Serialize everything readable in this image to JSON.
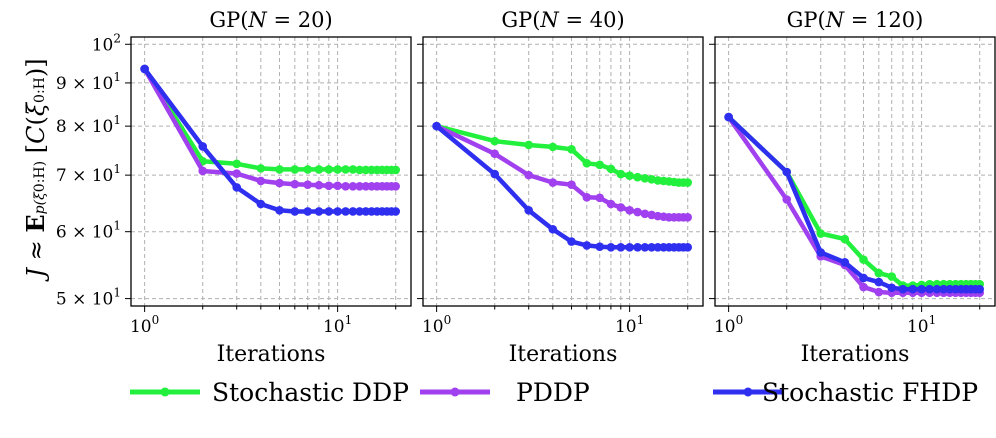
{
  "ylabel": "J ≈ E_{p(ξ0:H)} [C(ξ0:H)]",
  "chart_data": [
    {
      "type": "line",
      "title": "GP(N = 20)",
      "xlabel": "Iterations",
      "x_scale": "log",
      "y_scale": "log",
      "xlim": [
        0.85,
        24
      ],
      "ylim": [
        49,
        102
      ],
      "x_ticks": [
        "10^0",
        "10^1"
      ],
      "y_ticks": [
        "5 × 10^1",
        "6 × 10^1",
        "7 × 10^1",
        "8 × 10^1",
        "9 × 10^1",
        "10^2"
      ],
      "x": [
        1,
        2,
        3,
        4,
        5,
        6,
        7,
        8,
        9,
        10,
        11,
        12,
        13,
        14,
        15,
        16,
        17,
        18,
        19,
        20
      ],
      "series": [
        {
          "name": "Stochastic DDP",
          "color": "#22f03c",
          "values": [
            93.5,
            72.7,
            72.2,
            71.3,
            71.1,
            71.1,
            71.1,
            71.1,
            71.1,
            71.1,
            71.1,
            71.1,
            71.0,
            71.0,
            71.0,
            71.0,
            71.0,
            71.0,
            71.0,
            71.0
          ]
        },
        {
          "name": "PDDP",
          "color": "#a040ee",
          "values": [
            93.5,
            70.8,
            70.3,
            68.9,
            68.5,
            68.3,
            68.2,
            68.1,
            68.0,
            68.0,
            67.9,
            67.9,
            67.9,
            67.9,
            67.9,
            67.9,
            67.9,
            67.9,
            67.9,
            67.9
          ]
        },
        {
          "name": "Stochastic FHDP",
          "color": "#2f2ff0",
          "values": [
            93.5,
            75.7,
            67.7,
            64.7,
            63.6,
            63.4,
            63.4,
            63.4,
            63.4,
            63.4,
            63.4,
            63.4,
            63.4,
            63.4,
            63.4,
            63.4,
            63.4,
            63.4,
            63.4,
            63.4
          ]
        }
      ]
    },
    {
      "type": "line",
      "title": "GP(N = 40)",
      "xlabel": "Iterations",
      "x_scale": "log",
      "y_scale": "log",
      "xlim": [
        0.85,
        24
      ],
      "ylim": [
        49,
        102
      ],
      "x_ticks": [
        "10^0",
        "10^1"
      ],
      "x": [
        1,
        2,
        3,
        4,
        5,
        6,
        7,
        8,
        9,
        10,
        11,
        12,
        13,
        14,
        15,
        16,
        17,
        18,
        19,
        20
      ],
      "series": [
        {
          "name": "Stochastic DDP",
          "color": "#22f03c",
          "values": [
            80.0,
            76.8,
            76.0,
            75.6,
            75.1,
            72.3,
            72.0,
            71.2,
            70.2,
            69.9,
            69.6,
            69.4,
            69.2,
            69.0,
            68.9,
            68.8,
            68.7,
            68.6,
            68.6,
            68.6
          ]
        },
        {
          "name": "PDDP",
          "color": "#a040ee",
          "values": [
            80.0,
            74.2,
            70.0,
            68.6,
            68.2,
            65.9,
            65.8,
            64.7,
            64.1,
            63.6,
            63.3,
            63.0,
            62.8,
            62.6,
            62.5,
            62.4,
            62.4,
            62.4,
            62.4,
            62.4
          ]
        },
        {
          "name": "Stochastic FHDP",
          "color": "#2f2ff0",
          "values": [
            80.0,
            70.2,
            63.6,
            60.4,
            58.4,
            57.8,
            57.6,
            57.5,
            57.5,
            57.5,
            57.5,
            57.5,
            57.5,
            57.5,
            57.5,
            57.5,
            57.5,
            57.5,
            57.5,
            57.5
          ]
        }
      ]
    },
    {
      "type": "line",
      "title": "GP(N = 120)",
      "xlabel": "Iterations",
      "x_scale": "log",
      "y_scale": "log",
      "xlim": [
        0.85,
        24
      ],
      "ylim": [
        49,
        102
      ],
      "x_ticks": [
        "10^0",
        "10^1"
      ],
      "x": [
        1,
        2,
        3,
        4,
        5,
        6,
        7,
        8,
        9,
        10,
        11,
        12,
        13,
        14,
        15,
        16,
        17,
        18,
        19,
        20
      ],
      "series": [
        {
          "name": "Stochastic DDP",
          "color": "#22f03c",
          "values": [
            82.0,
            70.6,
            59.7,
            58.8,
            55.6,
            53.6,
            53.1,
            51.8,
            51.8,
            51.9,
            52.0,
            52.0,
            52.0,
            52.0,
            52.0,
            52.0,
            52.0,
            52.0,
            52.0,
            52.0
          ]
        },
        {
          "name": "PDDP",
          "color": "#a040ee",
          "values": [
            82.0,
            65.5,
            56.1,
            54.8,
            51.6,
            50.9,
            50.8,
            50.8,
            50.8,
            50.8,
            50.8,
            50.8,
            50.8,
            50.8,
            50.8,
            50.8,
            50.8,
            50.8,
            50.8,
            50.8
          ]
        },
        {
          "name": "Stochastic FHDP",
          "color": "#2f2ff0",
          "values": [
            82.0,
            70.6,
            56.7,
            55.2,
            52.9,
            52.3,
            51.5,
            51.3,
            51.3,
            51.3,
            51.3,
            51.3,
            51.3,
            51.3,
            51.3,
            51.3,
            51.3,
            51.3,
            51.3,
            51.3
          ]
        }
      ]
    }
  ],
  "legend": {
    "placement": "bottom",
    "entries": [
      {
        "label": "Stochastic DDP",
        "color": "#22f03c"
      },
      {
        "label": "PDDP",
        "color": "#a040ee"
      },
      {
        "label": "Stochastic FHDP",
        "color": "#2f2ff0"
      }
    ]
  }
}
